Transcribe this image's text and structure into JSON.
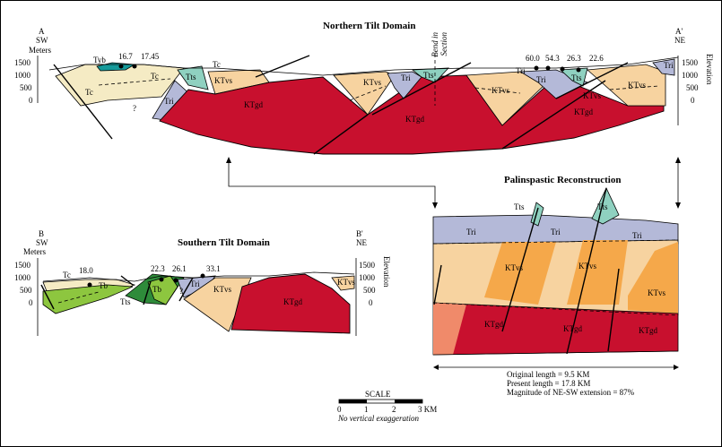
{
  "northern": {
    "title": "Northern Tilt Domain",
    "left_end": "A",
    "left_dir": "SW",
    "right_end": "A'",
    "right_dir": "NE",
    "meters_label": "Meters",
    "elevation_label": "Elevation",
    "scale_left": [
      "1500",
      "1000",
      "500",
      "0"
    ],
    "scale_right": [
      "1500",
      "1000",
      "500",
      "0"
    ],
    "bend_label": "Bend in Section",
    "ages_left": [
      "16.7",
      "17.45"
    ],
    "ages_right": [
      "60.0",
      "54.3",
      "26.3",
      "22.6"
    ],
    "question": "?",
    "units": {
      "tyb": "Tyb",
      "tc": "Tc",
      "tts": "Tts",
      "tri": "Tri",
      "ktvs": "KTvs",
      "ktgd": "KTgd"
    }
  },
  "southern": {
    "title": "Southern Tilt Domain",
    "left_end": "B",
    "left_dir": "SW",
    "right_end": "B'",
    "right_dir": "NE",
    "meters_label": "Meters",
    "elevation_label": "Elevation",
    "scale_left": [
      "1500",
      "1000",
      "500",
      "0"
    ],
    "scale_right": [
      "1500",
      "1000",
      "500",
      "0"
    ],
    "ages": [
      "18.0",
      "22.3",
      "26.1",
      "33.1"
    ],
    "question": "?",
    "units": {
      "tc": "Tc",
      "tb": "Tb",
      "tts": "Tts",
      "tri": "Tri",
      "ktvs": "KTvs",
      "ktgd": "KTgd"
    }
  },
  "palinspastic": {
    "title": "Palinspastic Reconstruction",
    "units": {
      "tts": "Tts",
      "tri": "Tri",
      "ktvs": "KTvs",
      "ktgd": "KTgd"
    },
    "original_length": "Original length = 9.5 KM",
    "present_length": "Present length = 17.8 KM",
    "extension": "Magnitude of NE-SW extension = 87%"
  },
  "scale": {
    "title": "SCALE",
    "ticks": [
      "0",
      "1",
      "2",
      "3 KM"
    ],
    "note": "No vertical exaggeration"
  },
  "colors": {
    "ktgd": "#c8102e",
    "ktvs": "#f7d3a0",
    "ktvs_dark": "#f5a84a",
    "tri": "#b4b9d8",
    "tts": "#8fd1c0",
    "tc": "#f5ebc4",
    "tb_light": "#8dc63f",
    "tb_dark": "#2e8b3a",
    "tyb": "#159a9a",
    "granite_light": "#f08a6a"
  }
}
